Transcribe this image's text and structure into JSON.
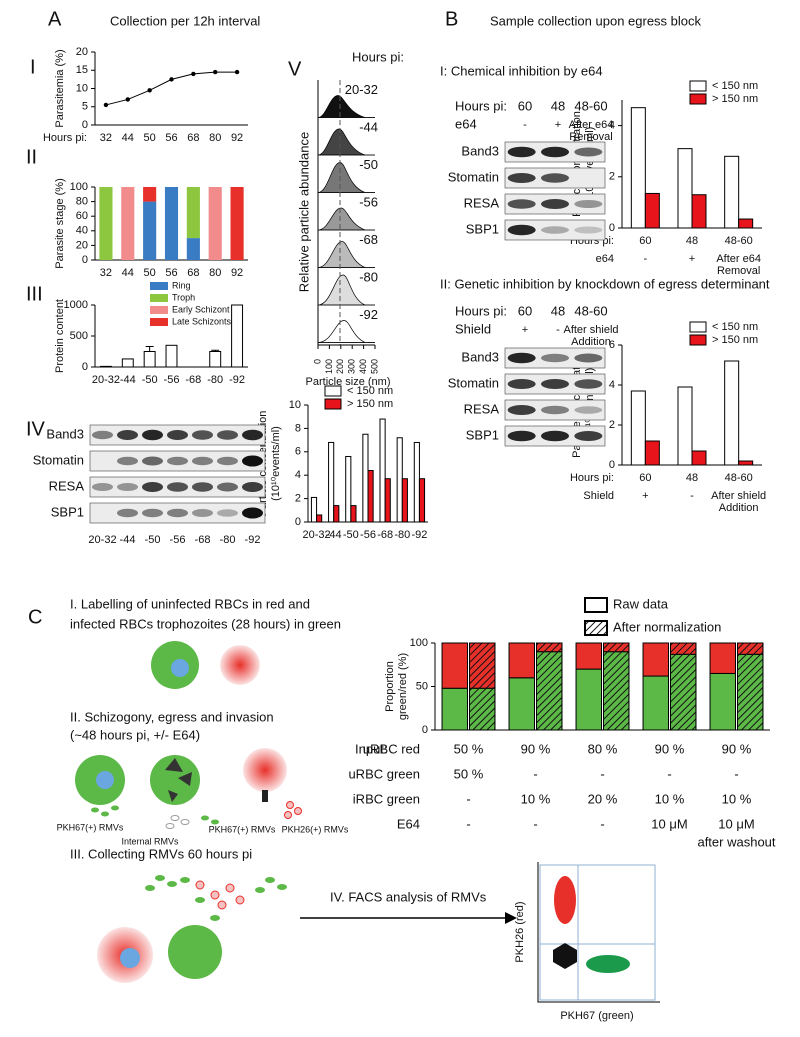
{
  "chart_data": [
    {
      "type": "line",
      "ylabel": "Parasitemia (%)",
      "xlabel": "Hours pi:",
      "categories": [
        "32",
        "44",
        "50",
        "56",
        "68",
        "80",
        "92"
      ],
      "values": [
        5.5,
        7,
        9.5,
        12.5,
        14,
        14.5,
        14.5
      ],
      "ylim": [
        0,
        20
      ],
      "yticks": [
        0,
        5,
        10,
        15,
        20
      ],
      "color": "#000000"
    },
    {
      "type": "stacked_bar",
      "ylabel": "Parasite stage (%)",
      "categories": [
        "32",
        "44",
        "50",
        "56",
        "68",
        "80",
        "92"
      ],
      "series": [
        {
          "name": "Ring",
          "color": "#3a7cc3",
          "values": [
            0,
            0,
            80,
            100,
            30,
            0,
            0
          ]
        },
        {
          "name": "Troph",
          "color": "#8dc63f",
          "values": [
            100,
            0,
            0,
            0,
            70,
            0,
            0
          ]
        },
        {
          "name": "Early Schizont",
          "color": "#f28b8b",
          "values": [
            0,
            100,
            0,
            0,
            0,
            100,
            0
          ]
        },
        {
          "name": "Late Schizonts",
          "color": "#e8302a",
          "values": [
            0,
            0,
            20,
            0,
            0,
            0,
            100
          ]
        }
      ],
      "ylim": [
        0,
        100
      ],
      "yticks": [
        0,
        20,
        40,
        60,
        80,
        100
      ],
      "legend": "below"
    },
    {
      "type": "bar",
      "ylabel": "Protein content",
      "categories": [
        "20-32",
        "-44",
        "-50",
        "-56",
        "-68",
        "-80",
        "-92"
      ],
      "values": [
        10,
        130,
        250,
        350,
        null,
        250,
        1000
      ],
      "errors": [
        null,
        null,
        80,
        null,
        null,
        20,
        null
      ],
      "ylim": [
        0,
        1000
      ],
      "yticks": [
        0,
        500,
        1000
      ],
      "color": "#ffffff"
    },
    {
      "type": "grouped_bar",
      "ylabel": [
        "Particle concentration",
        "(10¹⁰events/ml)"
      ],
      "categories": [
        "20-32",
        "-44",
        "-50",
        "-56",
        "-68",
        "-80",
        "-92"
      ],
      "series": [
        {
          "name": "< 150 nm",
          "color": "#ffffff",
          "values": [
            2.1,
            6.8,
            5.6,
            7.5,
            8.8,
            7.2,
            6.8
          ]
        },
        {
          "name": "> 150 nm",
          "color": "#e8141b",
          "values": [
            0.6,
            1.4,
            1.4,
            4.4,
            3.7,
            3.7,
            3.7
          ]
        }
      ],
      "ylim": [
        0,
        10
      ],
      "yticks": [
        0,
        2,
        4,
        6,
        8,
        10
      ]
    },
    {
      "type": "grouped_bar",
      "ylabel": [
        "Particle concentration",
        "(10¹⁰events/ml)"
      ],
      "xlabel": "Hours pi:",
      "categories": [
        "60",
        "48",
        "48-60"
      ],
      "row_label": "e64",
      "row": [
        "-",
        "+",
        [
          "After e64",
          "Removal"
        ]
      ],
      "series": [
        {
          "name": "< 150 nm",
          "color": "#ffffff",
          "values": [
            4.7,
            3.1,
            2.8
          ]
        },
        {
          "name": "> 150 nm",
          "color": "#e8141b",
          "values": [
            1.35,
            1.3,
            0.35
          ]
        }
      ],
      "ylim": [
        0,
        5
      ],
      "yticks": [
        0,
        2,
        4
      ]
    },
    {
      "type": "grouped_bar",
      "ylabel": [
        "Particle concentration",
        "(10¹⁰events/ml)"
      ],
      "xlabel": "Hours pi:",
      "categories": [
        "60",
        "48",
        "48-60"
      ],
      "row_label": "Shield",
      "row": [
        "+",
        "-",
        [
          "After shield",
          "Addition"
        ]
      ],
      "series": [
        {
          "name": "< 150 nm",
          "color": "#ffffff",
          "values": [
            3.7,
            3.9,
            5.2
          ]
        },
        {
          "name": "> 150 nm",
          "color": "#e8141b",
          "values": [
            1.2,
            0.7,
            0.2
          ]
        }
      ],
      "ylim": [
        0,
        6
      ],
      "yticks": [
        0,
        2,
        4,
        6
      ]
    },
    {
      "type": "paired_stacked",
      "ylabel": [
        "Proportion",
        "green/red (%)"
      ],
      "series": [
        {
          "name": "Raw data",
          "green": [
            48,
            60,
            70,
            62,
            65
          ],
          "red": [
            52,
            40,
            30,
            38,
            35
          ]
        },
        {
          "name": "After normalization",
          "green": [
            48,
            90,
            90,
            87,
            87
          ],
          "red": [
            52,
            10,
            10,
            13,
            13
          ]
        }
      ],
      "colors": {
        "green": "#5cb847",
        "red": "#e8302a"
      },
      "ylim": [
        0,
        100
      ],
      "yticks": [
        0,
        50,
        100
      ],
      "table": {
        "label": "Input:",
        "rows": [
          {
            "name": "uRBC red",
            "cells": [
              "50 %",
              "90 %",
              "80 %",
              "90 %",
              "90 %"
            ]
          },
          {
            "name": "uRBC green",
            "cells": [
              "50 %",
              "-",
              "-",
              "-",
              "-"
            ]
          },
          {
            "name": "iRBC green",
            "cells": [
              "-",
              "10 %",
              "20 %",
              "10 %",
              "10 %"
            ]
          },
          {
            "name": "E64",
            "cells": [
              "-",
              "-",
              "-",
              "10 μM",
              "10 μM"
            ]
          }
        ],
        "note": "after washout"
      }
    }
  ],
  "texts": {
    "A": "A",
    "A_title": "Collection per 12h interval",
    "I": "I",
    "II": "II",
    "III": "III",
    "IV": "IV",
    "V": "V",
    "B": "B",
    "B_title": "Sample collection upon egress block",
    "BI_title": "I: Chemical inhibition by e64",
    "BII_title": "II: Genetic inhibition by knockdown of egress determinant",
    "C": "C",
    "C1": [
      "I. Labelling of uninfected RBCs  in red and",
      "infected RBCs trophozoites (28 hours) in green"
    ],
    "C2": [
      "II. Schizogony, egress and invasion",
      "(~48 hours pi, +/- E64)"
    ],
    "C2_labels": [
      "PKH67(+) RMVs",
      "Internal RMVs",
      "PKH67(+) RMVs",
      "PKH26(+) RMVs"
    ],
    "C3": "III. Collecting RMVs 60 hours pi",
    "C4": "IV. FACS analysis of RMVs",
    "facs_y": "PKH26 (red)",
    "facs_x": "PKH67 (green)"
  },
  "blots": {
    "proteins": [
      "Band3",
      "Stomatin",
      "RESA",
      "SBP1"
    ],
    "A_lanes": [
      "20-32",
      "-44",
      "-50",
      "-56",
      "-68",
      "-80",
      "-92"
    ],
    "header_label": "Hours pi:",
    "B_lanes": [
      "60",
      "48",
      "48-60"
    ],
    "BI_row_label": "e64",
    "BI_row": [
      "-",
      "+",
      [
        "After e64",
        "Removal"
      ]
    ],
    "BII_row_label": "Shield",
    "BII_row": [
      "+",
      "-",
      [
        "After shield",
        "Addition"
      ]
    ]
  },
  "density": {
    "header": "Hours pi:",
    "labels": [
      "20-32",
      "-44",
      "-50",
      "-56",
      "-68",
      "-80",
      "-92"
    ],
    "xlabel": "Particle size (nm)",
    "ylabel": "Relative particle abundance",
    "xticks": [
      0,
      100,
      200,
      300,
      400,
      500
    ],
    "xlim": [
      0,
      500
    ]
  }
}
